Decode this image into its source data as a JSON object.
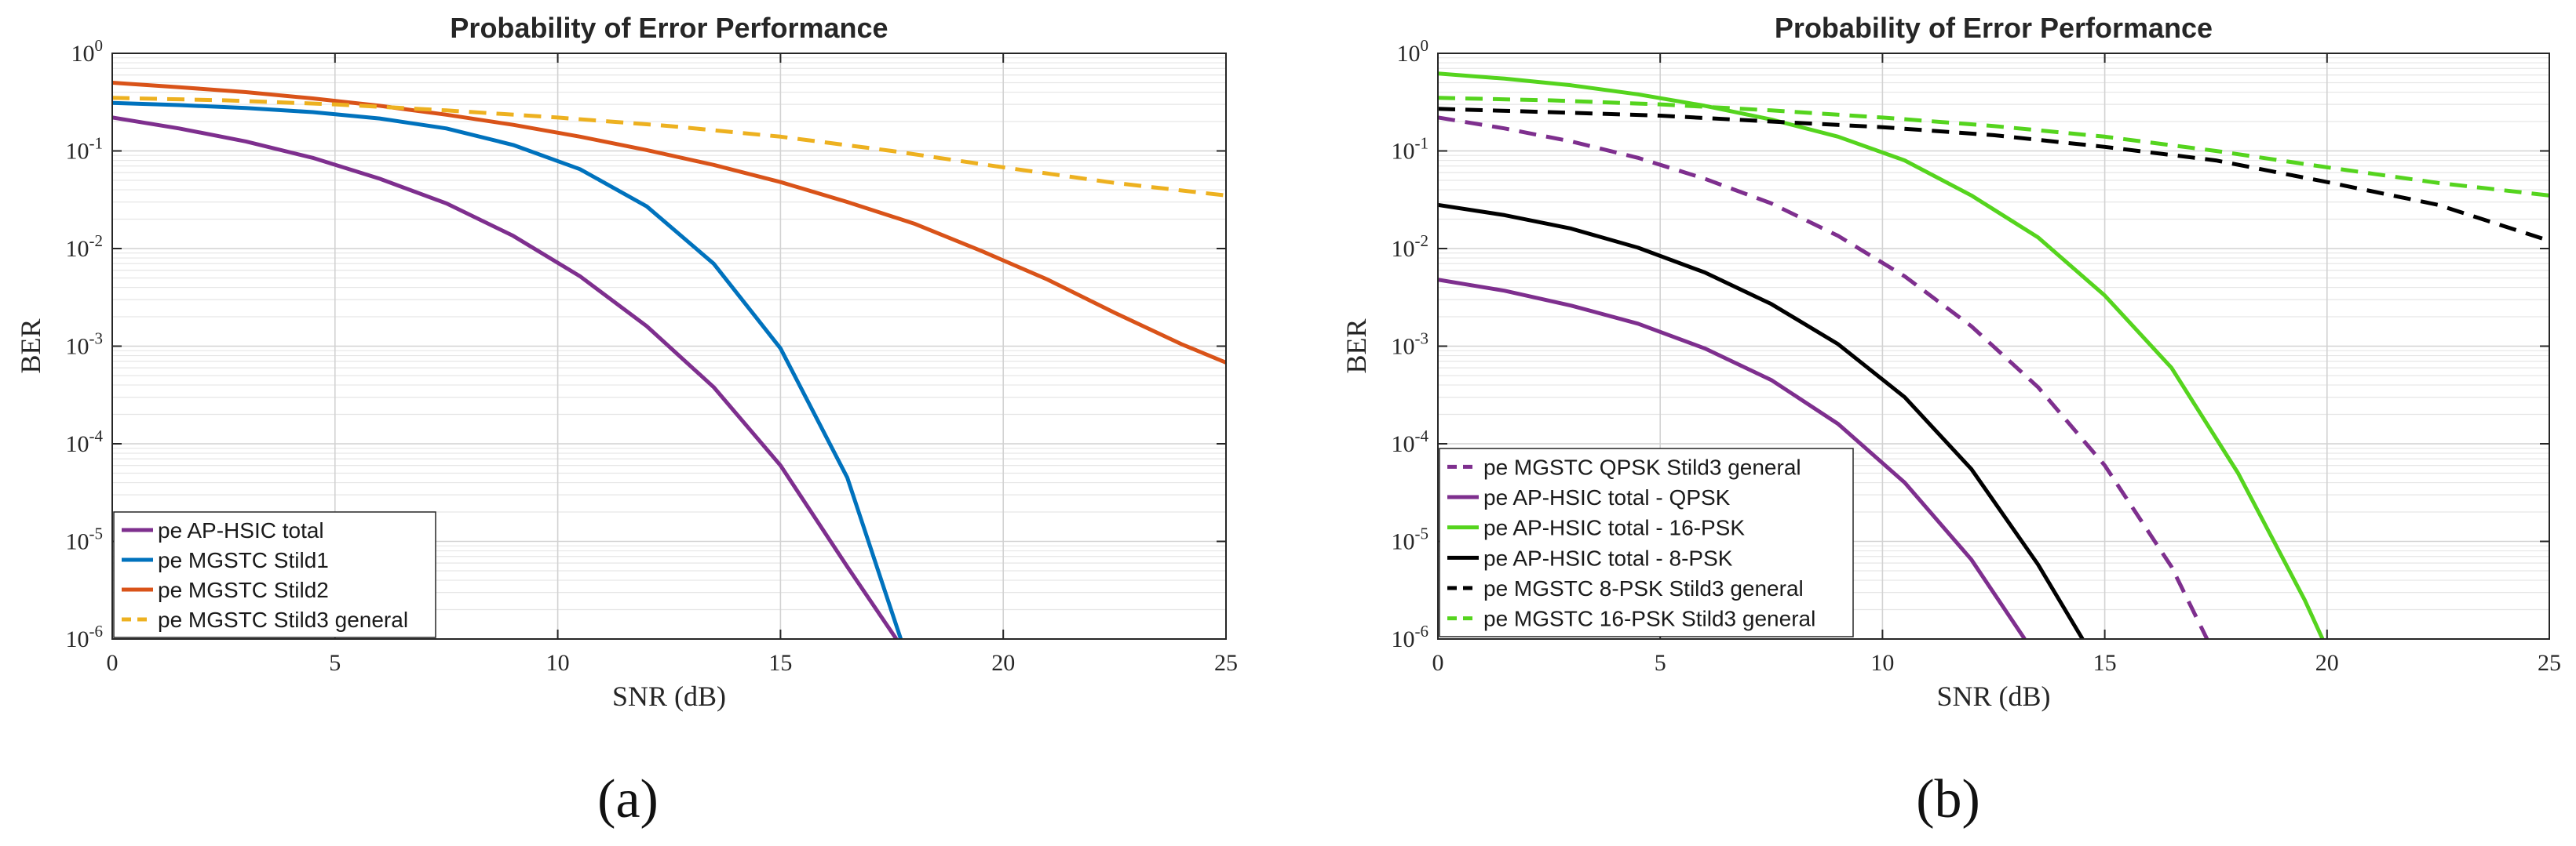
{
  "chart_data": [
    {
      "type": "line",
      "title": "Probability of Error Performance",
      "xlabel": "SNR (dB)",
      "ylabel": "BER",
      "xlim": [
        0,
        25
      ],
      "ylim_log10": [
        -6,
        0
      ],
      "yscale": "log",
      "grid": true,
      "x_ticks": [
        "0",
        "5",
        "10",
        "15",
        "20",
        "25"
      ],
      "y_ticks": [
        {
          "base": "10",
          "exp": "-6"
        },
        {
          "base": "10",
          "exp": "-5"
        },
        {
          "base": "10",
          "exp": "-4"
        },
        {
          "base": "10",
          "exp": "-3"
        },
        {
          "base": "10",
          "exp": "-2"
        },
        {
          "base": "10",
          "exp": "-1"
        },
        {
          "base": "10",
          "exp": "0"
        }
      ],
      "legend_position": "bottom-left",
      "caption": "(a)",
      "series": [
        {
          "name": "pe AP-HSIC total",
          "color": "#7E2F8E",
          "dash": "solid",
          "x": [
            0,
            1.5,
            3,
            4.5,
            6,
            7.5,
            9,
            10.5,
            12,
            13.5,
            15,
            16.5,
            17.6
          ],
          "values": [
            0.22,
            0.17,
            0.125,
            0.085,
            0.052,
            0.029,
            0.0135,
            0.0052,
            0.0016,
            0.00038,
            6e-05,
            5.5e-06,
            1e-06
          ]
        },
        {
          "name": "pe MGSTC Stild1",
          "color": "#0072BD",
          "dash": "solid",
          "x": [
            0,
            1.5,
            3,
            4.5,
            6,
            7.5,
            9,
            10.5,
            12,
            13.5,
            15,
            16.5,
            17.7
          ],
          "values": [
            0.31,
            0.295,
            0.275,
            0.25,
            0.215,
            0.17,
            0.115,
            0.065,
            0.027,
            0.007,
            0.00095,
            4.5e-05,
            1e-06
          ]
        },
        {
          "name": "pe MGSTC Stild2",
          "color": "#D95319",
          "dash": "solid",
          "x": [
            0,
            1.5,
            3,
            4.5,
            6,
            7.5,
            9,
            10.5,
            12,
            13.5,
            15,
            16.5,
            18,
            19.5,
            21,
            22.5,
            24,
            25
          ],
          "values": [
            0.5,
            0.45,
            0.4,
            0.345,
            0.29,
            0.235,
            0.185,
            0.14,
            0.102,
            0.072,
            0.048,
            0.03,
            0.018,
            0.0095,
            0.0048,
            0.0022,
            0.00105,
            0.00068
          ]
        },
        {
          "name": "pe MGSTC Stild3 general",
          "color": "#EDB120",
          "dash": "dashed",
          "x": [
            0,
            2.5,
            5,
            7.5,
            10,
            12.5,
            15,
            17.5,
            20,
            22.5,
            25
          ],
          "values": [
            0.35,
            0.33,
            0.3,
            0.26,
            0.22,
            0.18,
            0.14,
            0.1,
            0.068,
            0.047,
            0.035
          ]
        }
      ]
    },
    {
      "type": "line",
      "title": "Probability of Error Performance",
      "xlabel": "SNR (dB)",
      "ylabel": "BER",
      "xlim": [
        0,
        25
      ],
      "ylim_log10": [
        -6,
        0
      ],
      "yscale": "log",
      "grid": true,
      "x_ticks": [
        "0",
        "5",
        "10",
        "15",
        "20",
        "25"
      ],
      "y_ticks": [
        {
          "base": "10",
          "exp": "-6"
        },
        {
          "base": "10",
          "exp": "-5"
        },
        {
          "base": "10",
          "exp": "-4"
        },
        {
          "base": "10",
          "exp": "-3"
        },
        {
          "base": "10",
          "exp": "-2"
        },
        {
          "base": "10",
          "exp": "-1"
        },
        {
          "base": "10",
          "exp": "0"
        }
      ],
      "legend_position": "bottom-left",
      "caption": "(b)",
      "series": [
        {
          "name": "pe MGSTC QPSK Stild3 general",
          "color": "#7E2F8E",
          "dash": "dashed",
          "x": [
            0,
            1.5,
            3,
            4.5,
            6,
            7.5,
            9,
            10.5,
            12,
            13.5,
            15,
            16.5,
            17.3
          ],
          "values": [
            0.22,
            0.17,
            0.125,
            0.085,
            0.052,
            0.029,
            0.0135,
            0.0052,
            0.0016,
            0.00038,
            6e-05,
            5.5e-06,
            1e-06
          ]
        },
        {
          "name": "pe AP-HSIC total - QPSK",
          "color": "#7E2F8E",
          "dash": "solid",
          "x": [
            0,
            1.5,
            3,
            4.5,
            6,
            7.5,
            9,
            10.5,
            12,
            13.2
          ],
          "values": [
            0.0048,
            0.0037,
            0.0026,
            0.0017,
            0.00095,
            0.00045,
            0.00016,
            4e-05,
            6.5e-06,
            1e-06
          ]
        },
        {
          "name": "pe AP-HSIC total - 16-PSK",
          "color": "#55D41E",
          "dash": "solid",
          "x": [
            0,
            1.5,
            3,
            4.5,
            6,
            7.5,
            9,
            10.5,
            12,
            13.5,
            15,
            16.5,
            18,
            19.5,
            19.9
          ],
          "values": [
            0.62,
            0.55,
            0.47,
            0.38,
            0.29,
            0.21,
            0.14,
            0.08,
            0.035,
            0.013,
            0.0033,
            0.0006,
            5e-05,
            2.5e-06,
            1e-06
          ]
        },
        {
          "name": "pe AP-HSIC total - 8-PSK",
          "color": "#000000",
          "dash": "solid",
          "x": [
            0,
            1.5,
            3,
            4.5,
            6,
            7.5,
            9,
            10.5,
            12,
            13.5,
            14.5
          ],
          "values": [
            0.028,
            0.022,
            0.016,
            0.0102,
            0.0057,
            0.0027,
            0.00105,
            0.0003,
            5.5e-05,
            5.8e-06,
            1e-06
          ]
        },
        {
          "name": "pe MGSTC 8-PSK Stild3 general",
          "color": "#000000",
          "dash": "dashed",
          "x": [
            0,
            2.5,
            5,
            7.5,
            10,
            12.5,
            15,
            17.5,
            20,
            22.5,
            25
          ],
          "values": [
            0.27,
            0.25,
            0.23,
            0.2,
            0.175,
            0.145,
            0.11,
            0.08,
            0.048,
            0.028,
            0.012
          ]
        },
        {
          "name": "pe MGSTC 16-PSK Stild3 general",
          "color": "#55D41E",
          "dash": "dashed",
          "x": [
            0,
            2.5,
            5,
            7.5,
            10,
            12.5,
            15,
            17.5,
            20,
            22.5,
            25
          ],
          "values": [
            0.35,
            0.33,
            0.3,
            0.26,
            0.22,
            0.18,
            0.14,
            0.1,
            0.068,
            0.047,
            0.035
          ]
        }
      ]
    }
  ]
}
